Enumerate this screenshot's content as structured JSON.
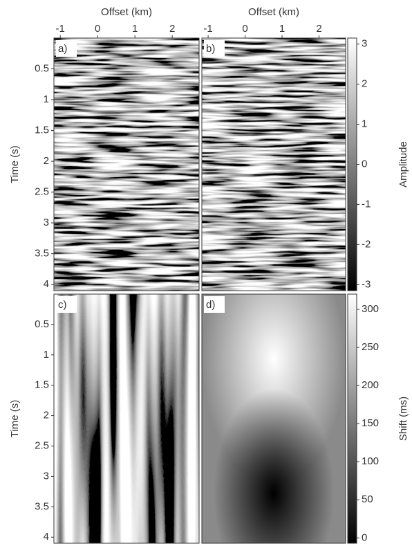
{
  "chart_data": [
    {
      "type": "image",
      "panel_label": "a)",
      "xlabel": "Offset (km)",
      "ylabel": "Time (s)",
      "xlim": [
        -1.17,
        2.72
      ],
      "xticks": [
        -1,
        0,
        1,
        2
      ],
      "ylim": [
        0,
        4.1
      ],
      "yticks": [
        0.5,
        1,
        1.5,
        2,
        2.5,
        3,
        3.5,
        4
      ]
    },
    {
      "type": "image",
      "panel_label": "b)",
      "xlabel": "Offset (km)",
      "xlim": [
        -1.17,
        2.72
      ],
      "xticks": [
        -1,
        0,
        1,
        2
      ],
      "colorbar": {
        "label": "Amplitude",
        "ylim": [
          -3.15,
          3.15
        ],
        "yticks": [
          -3,
          -2,
          -1,
          0,
          1,
          2,
          3
        ]
      }
    },
    {
      "type": "image",
      "panel_label": "c)",
      "ylabel": "Time (s)",
      "ylim": [
        0,
        4.1
      ],
      "yticks": [
        0.5,
        1,
        1.5,
        2,
        2.5,
        3,
        3.5,
        4
      ]
    },
    {
      "type": "image",
      "panel_label": "d)",
      "colorbar": {
        "label": "Shift (ms)",
        "ylim": [
          -7,
          320
        ],
        "yticks": [
          0,
          50,
          100,
          150,
          200,
          250,
          300
        ]
      }
    }
  ]
}
